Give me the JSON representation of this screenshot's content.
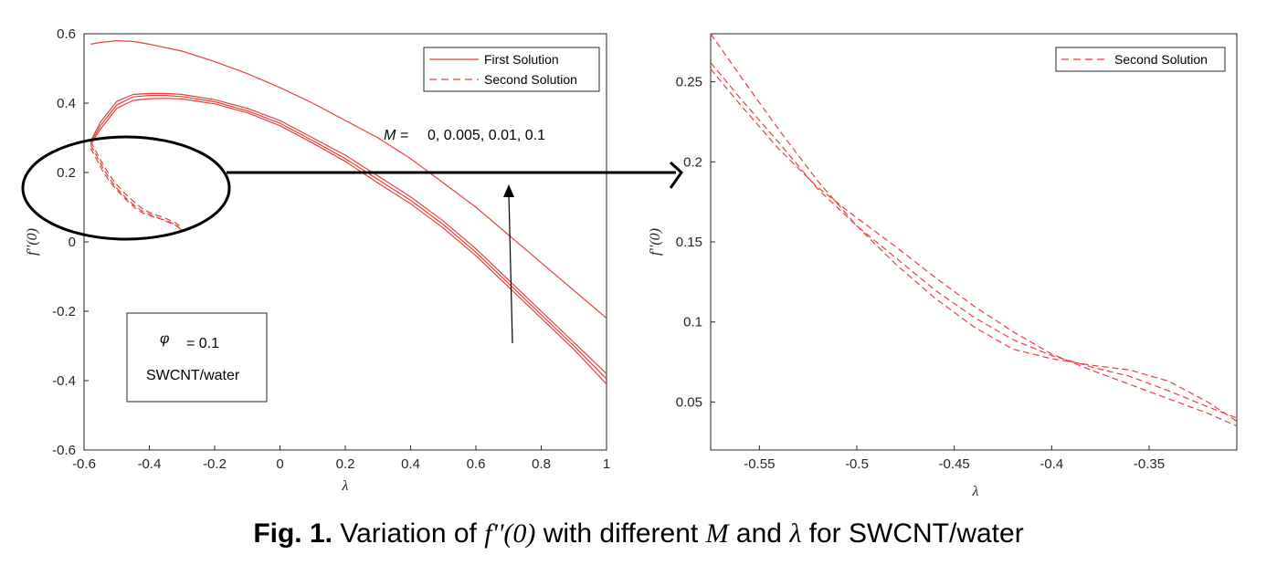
{
  "chart_data": [
    {
      "type": "line",
      "xlabel": "λ",
      "ylabel": "f''(0)",
      "xlim": [
        -0.6,
        1.0
      ],
      "ylim": [
        -0.6,
        0.6
      ],
      "xticks": [
        "-0.6",
        "-0.4",
        "-0.2",
        "0",
        "0.2",
        "0.4",
        "0.6",
        "0.8",
        "1"
      ],
      "yticks": [
        "0.6",
        "0.4",
        "0.2",
        "0",
        "-0.2",
        "-0.4",
        "-0.6"
      ],
      "legend": {
        "placement": "top-right",
        "entries": [
          {
            "label": "First Solution",
            "style": "solid"
          },
          {
            "label": "Second Solution",
            "style": "dashed"
          }
        ]
      },
      "series": [
        {
          "style": "solid",
          "x": [
            -0.58,
            -0.55,
            -0.5,
            -0.45,
            -0.4,
            -0.3,
            -0.2,
            -0.1,
            0,
            0.1,
            0.2,
            0.3,
            0.4,
            0.5,
            0.6,
            0.7,
            0.8,
            0.9,
            1.0
          ],
          "y": [
            0.57,
            0.575,
            0.58,
            0.578,
            0.57,
            0.55,
            0.52,
            0.485,
            0.445,
            0.4,
            0.35,
            0.3,
            0.24,
            0.17,
            0.1,
            0.02,
            -0.06,
            -0.14,
            -0.22
          ]
        },
        {
          "style": "solid",
          "x": [
            -0.58,
            -0.55,
            -0.5,
            -0.45,
            -0.4,
            -0.35,
            -0.3,
            -0.2,
            -0.1,
            0,
            0.1,
            0.2,
            0.3,
            0.4,
            0.5,
            0.6,
            0.7,
            0.8,
            0.9,
            1.0
          ],
          "y": [
            0.29,
            0.345,
            0.405,
            0.425,
            0.428,
            0.428,
            0.425,
            0.41,
            0.385,
            0.35,
            0.3,
            0.25,
            0.19,
            0.13,
            0.06,
            -0.02,
            -0.11,
            -0.2,
            -0.29,
            -0.38
          ]
        },
        {
          "style": "solid",
          "x": [
            -0.58,
            -0.55,
            -0.5,
            -0.45,
            -0.4,
            -0.35,
            -0.3,
            -0.2,
            -0.1,
            0,
            0.1,
            0.2,
            0.3,
            0.4,
            0.5,
            0.6,
            0.7,
            0.8,
            0.9,
            1.0
          ],
          "y": [
            0.285,
            0.335,
            0.395,
            0.418,
            0.422,
            0.422,
            0.419,
            0.404,
            0.378,
            0.342,
            0.292,
            0.24,
            0.18,
            0.12,
            0.05,
            -0.03,
            -0.12,
            -0.21,
            -0.3,
            -0.395
          ]
        },
        {
          "style": "solid",
          "x": [
            -0.58,
            -0.55,
            -0.5,
            -0.45,
            -0.4,
            -0.35,
            -0.3,
            -0.2,
            -0.1,
            0,
            0.1,
            0.2,
            0.3,
            0.4,
            0.5,
            0.6,
            0.7,
            0.8,
            0.9,
            1.0
          ],
          "y": [
            0.28,
            0.325,
            0.385,
            0.408,
            0.413,
            0.414,
            0.412,
            0.398,
            0.372,
            0.335,
            0.285,
            0.232,
            0.17,
            0.11,
            0.04,
            -0.04,
            -0.13,
            -0.22,
            -0.31,
            -0.41
          ]
        },
        {
          "style": "dashed",
          "x": [
            -0.58,
            -0.56,
            -0.54,
            -0.52,
            -0.5,
            -0.47,
            -0.44,
            -0.42,
            -0.4,
            -0.38,
            -0.35,
            -0.32,
            -0.3
          ],
          "y": [
            0.29,
            0.255,
            0.22,
            0.19,
            0.165,
            0.135,
            0.11,
            0.095,
            0.085,
            0.078,
            0.068,
            0.055,
            0.04
          ]
        },
        {
          "style": "dashed",
          "x": [
            -0.58,
            -0.56,
            -0.54,
            -0.52,
            -0.5,
            -0.47,
            -0.44,
            -0.42,
            -0.4,
            -0.38,
            -0.35,
            -0.32,
            -0.3
          ],
          "y": [
            0.28,
            0.245,
            0.21,
            0.18,
            0.155,
            0.125,
            0.1,
            0.088,
            0.08,
            0.072,
            0.06,
            0.048,
            0.035
          ]
        },
        {
          "style": "dashed",
          "x": [
            -0.58,
            -0.56,
            -0.54,
            -0.52,
            -0.5,
            -0.47,
            -0.44,
            -0.42,
            -0.4,
            -0.38,
            -0.35,
            -0.32,
            -0.3
          ],
          "y": [
            0.27,
            0.235,
            0.2,
            0.172,
            0.15,
            0.12,
            0.095,
            0.083,
            0.076,
            0.07,
            0.062,
            0.05,
            0.032
          ]
        }
      ],
      "annotations": {
        "m_label": "M =",
        "m_values": "0, 0.005, 0.01, 0.1",
        "phi_symbol": "φ",
        "phi_value": "= 0.1",
        "fluid": "SWCNT/water"
      }
    },
    {
      "type": "line",
      "xlabel": "λ",
      "ylabel": "f''(0)",
      "xlim": [
        -0.575,
        -0.305
      ],
      "ylim": [
        0.02,
        0.28
      ],
      "xticks": [
        "-0.55",
        "-0.5",
        "-0.45",
        "-0.4",
        "-0.35"
      ],
      "yticks": [
        "0.25",
        "0.2",
        "0.15",
        "0.1",
        "0.05"
      ],
      "legend": {
        "placement": "top-right",
        "entries": [
          {
            "label": "Second Solution",
            "style": "dashed"
          }
        ]
      },
      "series": [
        {
          "style": "dashed",
          "x": [
            -0.575,
            -0.56,
            -0.54,
            -0.52,
            -0.5,
            -0.48,
            -0.46,
            -0.44,
            -0.42,
            -0.4,
            -0.38,
            -0.36,
            -0.34,
            -0.32,
            -0.305
          ],
          "y": [
            0.262,
            0.24,
            0.212,
            0.183,
            0.16,
            0.14,
            0.12,
            0.103,
            0.089,
            0.079,
            0.072,
            0.066,
            0.057,
            0.047,
            0.04
          ]
        },
        {
          "style": "dashed",
          "x": [
            -0.575,
            -0.56,
            -0.54,
            -0.52,
            -0.5,
            -0.48,
            -0.46,
            -0.44,
            -0.42,
            -0.4,
            -0.38,
            -0.36,
            -0.34,
            -0.32,
            -0.305
          ],
          "y": [
            0.28,
            0.254,
            0.22,
            0.188,
            0.16,
            0.136,
            0.115,
            0.097,
            0.083,
            0.077,
            0.073,
            0.07,
            0.063,
            0.05,
            0.038
          ]
        },
        {
          "style": "dashed",
          "x": [
            -0.575,
            -0.56,
            -0.54,
            -0.52,
            -0.5,
            -0.48,
            -0.46,
            -0.44,
            -0.42,
            -0.4,
            -0.38,
            -0.36,
            -0.34,
            -0.32,
            -0.305
          ],
          "y": [
            0.258,
            0.236,
            0.208,
            0.184,
            0.165,
            0.147,
            0.128,
            0.11,
            0.094,
            0.08,
            0.07,
            0.061,
            0.052,
            0.043,
            0.035
          ]
        }
      ]
    }
  ],
  "caption": {
    "prefix": "Fig. 1.",
    "text1": "Variation of ",
    "fexpr": "f''(0)",
    "text2": " with different ",
    "m": "M",
    "text3": " and ",
    "lambda": "λ",
    "text4": " for SWCNT/water"
  },
  "colors": {
    "line": "#e8413c",
    "axis": "#262626",
    "annotation": "#000000"
  }
}
